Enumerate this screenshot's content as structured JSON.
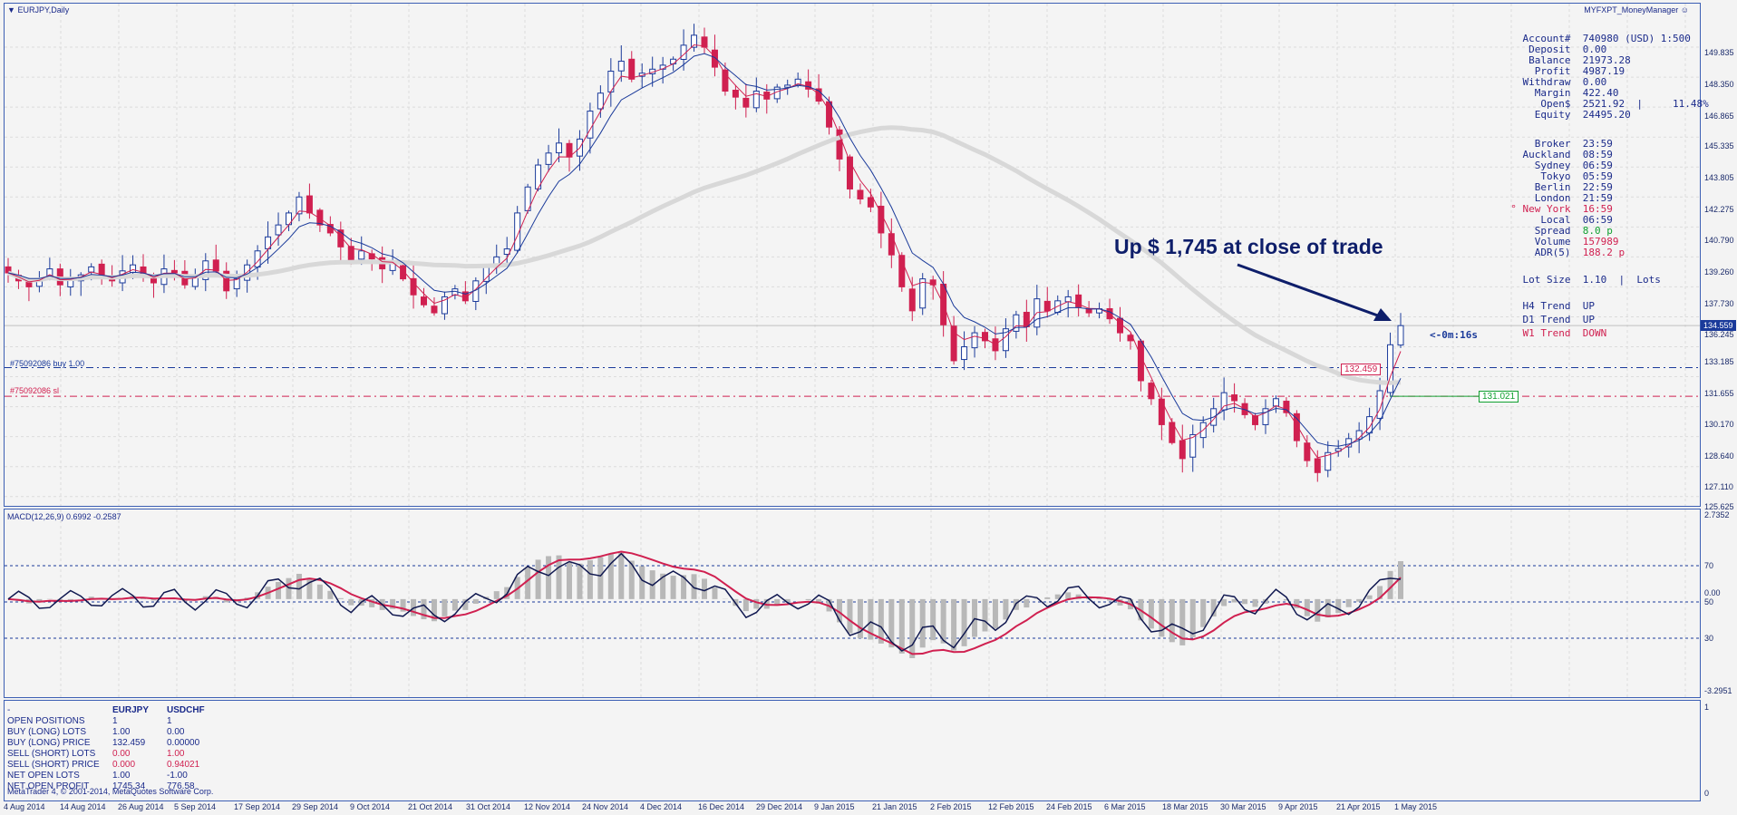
{
  "chart_title": "EURJPY,Daily",
  "indicator_name": "MYFXPT_MoneyManager",
  "annotation": "Up $ 1,745 at close of trade",
  "countdown": "<-0m:16s",
  "order_buy_label": "#75092086 buy 1.00",
  "order_sl_label": "#75092086 sl",
  "entry_price_tag": "132.459",
  "sl_price_tag": "131.021",
  "current_price_tag": "134.559",
  "macd_label": "MACD(12,26,9) 0.6992 -0.2587",
  "price_scale": [
    "149.835",
    "148.350",
    "146.865",
    "145.335",
    "143.805",
    "142.275",
    "140.790",
    "139.260",
    "137.730",
    "136.245",
    "134.559",
    "133.185",
    "131.655",
    "130.170",
    "128.640",
    "127.110",
    "125.625"
  ],
  "macd_scale": [
    "2.7352",
    "70",
    "0.00",
    "50",
    "30",
    "-3.2951"
  ],
  "lower_scale": [
    "1",
    "0"
  ],
  "x_labels": [
    "4 Aug 2014",
    "14 Aug 2014",
    "26 Aug 2014",
    "5 Sep 2014",
    "17 Sep 2014",
    "29 Sep 2014",
    "9 Oct 2014",
    "21 Oct 2014",
    "31 Oct 2014",
    "12 Nov 2014",
    "24 Nov 2014",
    "4 Dec 2014",
    "16 Dec 2014",
    "29 Dec 2014",
    "9 Jan 2015",
    "21 Jan 2015",
    "2 Feb 2015",
    "12 Feb 2015",
    "24 Feb 2015",
    "6 Mar 2015",
    "18 Mar 2015",
    "30 Mar 2015",
    "9 Apr 2015",
    "21 Apr 2015",
    "1 May 2015"
  ],
  "account": {
    "rows": [
      {
        "k": "Account#",
        "v": "740980 (USD) 1:500"
      },
      {
        "k": "Deposit",
        "v": "0.00"
      },
      {
        "k": "Balance",
        "v": "21973.28"
      },
      {
        "k": "Profit",
        "v": "4987.19"
      },
      {
        "k": "Withdraw",
        "v": "0.00"
      },
      {
        "k": "Margin",
        "v": "422.40"
      },
      {
        "k": "Open$",
        "v": "2521.92  |     11.48%"
      },
      {
        "k": "Equity",
        "v": "24495.20"
      }
    ]
  },
  "clocks": [
    {
      "k": "Broker",
      "v": "23:59"
    },
    {
      "k": "Auckland",
      "v": "08:59"
    },
    {
      "k": "Sydney",
      "v": "06:59"
    },
    {
      "k": "Tokyo",
      "v": "05:59"
    },
    {
      "k": "Berlin",
      "v": "22:59"
    },
    {
      "k": "London",
      "v": "21:59"
    },
    {
      "k": "° New York",
      "v": "16:59"
    },
    {
      "k": "Local",
      "v": "06:59"
    },
    {
      "k": "Spread",
      "v": "8.0 p"
    },
    {
      "k": "Volume",
      "v": "157989"
    },
    {
      "k": "ADR(5)",
      "v": "188.2 p"
    }
  ],
  "lot": {
    "k": "Lot Size",
    "v": "1.10  |  Lots"
  },
  "trends": [
    {
      "k": "H4 Trend",
      "v": "UP"
    },
    {
      "k": "D1 Trend",
      "v": "UP"
    },
    {
      "k": "W1 Trend",
      "v": "DOWN"
    }
  ],
  "positions": {
    "headers": [
      "-",
      "EURJPY",
      "USDCHF"
    ],
    "rows": [
      [
        "OPEN POSITIONS",
        "1",
        "1"
      ],
      [
        "BUY (LONG) LOTS",
        "1.00",
        "0.00"
      ],
      [
        "BUY (LONG) PRICE",
        "132.459",
        "0.00000"
      ],
      [
        "SELL (SHORT) LOTS",
        "0.00",
        "1.00"
      ],
      [
        "SELL (SHORT) PRICE",
        "0.000",
        "0.94021"
      ],
      [
        "NET OPEN LOTS",
        "1.00",
        "-1.00"
      ],
      [
        "NET OPEN PROFIT",
        "1745.34",
        "776.58"
      ]
    ]
  },
  "copyright": "MetaTrader 4, © 2001-2014, MetaQuotes Software Corp.",
  "colors": {
    "up": "#1a3a9a",
    "down": "#d02050",
    "ma200": "#d8d8d8",
    "macd": "#101850",
    "signal": "#d02050",
    "hist": "#b8b8b8"
  },
  "chart_data": {
    "type": "candlestick",
    "title": "EURJPY,Daily",
    "ylim": [
      125.625,
      150.5
    ],
    "close_series_approx": [
      137.2,
      136.8,
      136.5,
      136.9,
      137.4,
      136.6,
      136.9,
      137.1,
      137.5,
      137.0,
      136.8,
      137.3,
      137.6,
      137.1,
      136.7,
      137.4,
      137.2,
      136.6,
      137.0,
      137.8,
      137.3,
      136.3,
      136.9,
      137.6,
      138.3,
      139.0,
      139.6,
      140.2,
      141.0,
      140.2,
      139.6,
      139.2,
      138.5,
      137.8,
      138.3,
      137.9,
      137.4,
      137.7,
      136.9,
      136.1,
      135.6,
      135.2,
      136.0,
      136.4,
      135.8,
      136.8,
      137.5,
      138.0,
      138.4,
      140.2,
      141.5,
      142.6,
      143.2,
      143.7,
      143.0,
      143.9,
      145.3,
      146.2,
      147.3,
      147.8,
      146.9,
      147.2,
      147.4,
      147.6,
      147.9,
      148.6,
      149.1,
      148.5,
      147.5,
      146.3,
      146.0,
      145.5,
      146.3,
      145.9,
      146.5,
      146.6,
      146.9,
      146.4,
      145.8,
      144.5,
      142.9,
      141.4,
      140.9,
      140.5,
      139.2,
      138.1,
      136.5,
      135.3,
      136.9,
      136.6,
      134.6,
      132.8,
      133.5,
      134.2,
      133.8,
      133.3,
      134.4,
      135.1,
      134.5,
      135.9,
      135.3,
      135.8,
      136.0,
      135.5,
      135.2,
      135.4,
      134.9,
      134.2,
      133.8,
      131.8,
      130.9,
      129.6,
      128.7,
      127.9,
      129.1,
      129.7,
      130.4,
      131.2,
      130.8,
      130.1,
      129.6,
      130.4,
      130.9,
      130.2,
      128.8,
      127.8,
      127.2,
      128.2,
      128.4,
      128.9,
      129.3,
      130.0,
      131.3,
      133.6,
      134.559
    ]
  }
}
